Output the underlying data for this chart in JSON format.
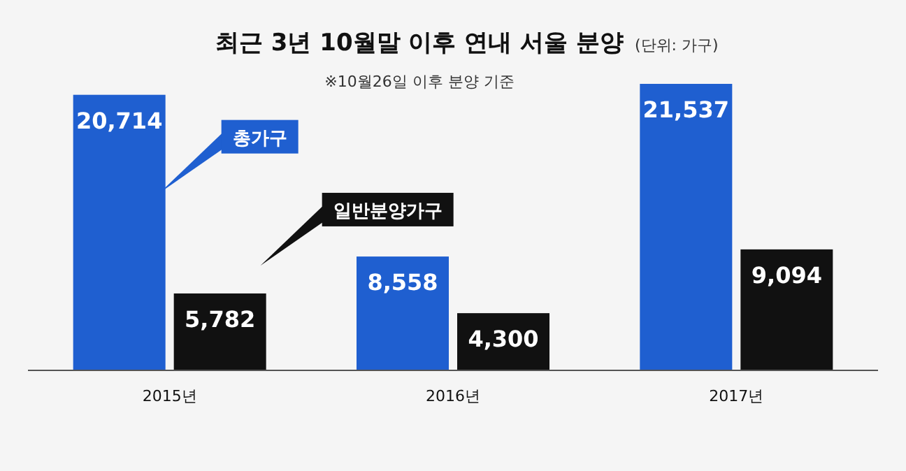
{
  "chart_data": {
    "type": "bar",
    "title": "최근 3년 10월말 이후 연내 서울 분양",
    "subtitle": "※10월26일 이후 분양 기준",
    "annotations": [
      "(단위: 가구)"
    ],
    "categories": [
      "2015년",
      "2016년",
      "2017년"
    ],
    "series": [
      {
        "name": "총가구",
        "color": "#1f5fd0",
        "values": [
          20714,
          8558,
          21537
        ],
        "value_labels": [
          "20,714",
          "8,558",
          "21,537"
        ]
      },
      {
        "name": "일반분양가구",
        "color": "#111111",
        "values": [
          5782,
          4300,
          9094
        ],
        "value_labels": [
          "5,782",
          "4,300",
          "9,094"
        ]
      }
    ],
    "legend": false
  }
}
